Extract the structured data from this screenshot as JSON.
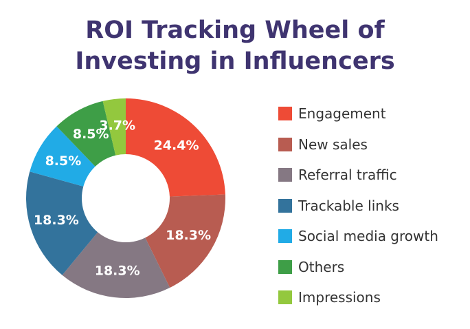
{
  "chart_data": {
    "type": "pie",
    "title": [
      "ROI Tracking Wheel of",
      "Investing in Influencers"
    ],
    "donut": true,
    "legend_position": "right",
    "slices": [
      {
        "label": "Engagement",
        "value": 24.4,
        "value_label": "24.4%",
        "color": "#ee4b36"
      },
      {
        "label": "New sales",
        "value": 18.3,
        "value_label": "18.3%",
        "color": "#b85c51"
      },
      {
        "label": "Referral traffic",
        "value": 18.3,
        "value_label": "18.3%",
        "color": "#857883"
      },
      {
        "label": "Trackable links",
        "value": 18.3,
        "value_label": "18.3%",
        "color": "#33739c"
      },
      {
        "label": "Social media growth",
        "value": 8.5,
        "value_label": "8.5%",
        "color": "#21abe6"
      },
      {
        "label": "Others",
        "value": 8.5,
        "value_label": "8.5%",
        "color": "#3e9e47"
      },
      {
        "label": "Impressions",
        "value": 3.7,
        "value_label": "3.7%",
        "color": "#93c83e"
      }
    ]
  }
}
